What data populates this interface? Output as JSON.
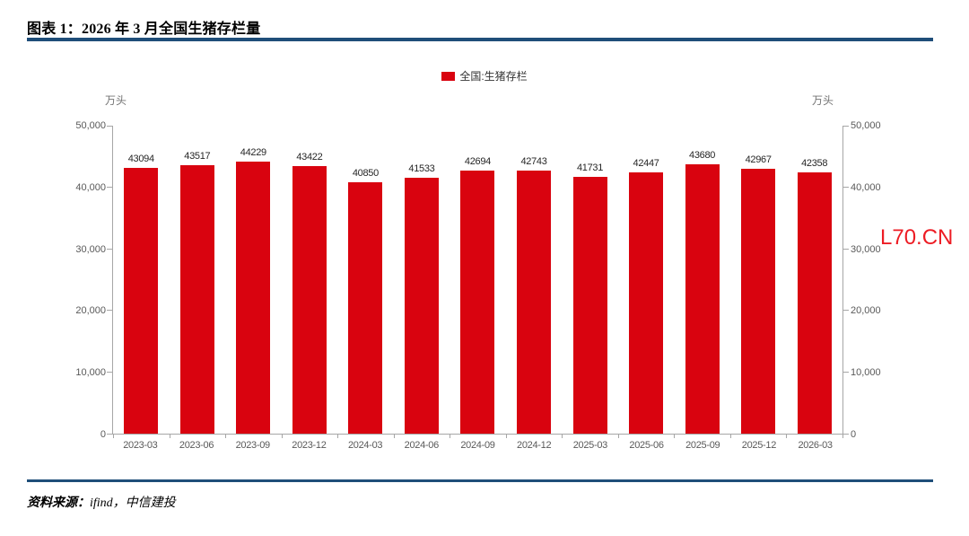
{
  "header": {
    "title": "图表 1：2026 年 3 月全国生猪存栏量"
  },
  "legend": {
    "label": "全国:生猪存栏",
    "color": "#D9030F"
  },
  "axes": {
    "left_unit": "万头",
    "right_unit": "万头",
    "ytick_labels": [
      "0",
      "10,000",
      "20,000",
      "30,000",
      "40,000",
      "50,000"
    ]
  },
  "watermark": "L70.CN",
  "footer": {
    "source_label": "资料来源：",
    "source_text": "ifind，中信建投"
  },
  "chart_data": {
    "type": "bar",
    "title": "2026年3月全国生猪存栏量",
    "categories": [
      "2023-03",
      "2023-06",
      "2023-09",
      "2023-12",
      "2024-03",
      "2024-06",
      "2024-09",
      "2024-12",
      "2025-03",
      "2025-06",
      "2025-09",
      "2025-12",
      "2026-03"
    ],
    "values": [
      43094,
      43517,
      44229,
      43422,
      40850,
      41533,
      42694,
      42743,
      41731,
      42447,
      43680,
      42967,
      42358
    ],
    "series_name": "全国:生猪存栏",
    "xlabel": "",
    "ylabel": "万头",
    "ylim": [
      0,
      50000
    ],
    "yticks": [
      0,
      10000,
      20000,
      30000,
      40000,
      50000
    ],
    "bar_color": "#D9030F",
    "value_labels": true,
    "grid": false,
    "legend_position": "top"
  }
}
